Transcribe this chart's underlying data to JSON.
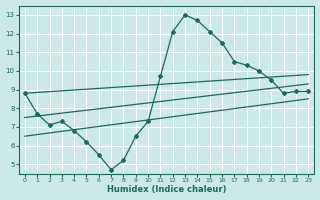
{
  "xlabel": "Humidex (Indice chaleur)",
  "bg_color": "#cce8e8",
  "grid_color": "#b8d8d8",
  "line_color": "#1a6b5a",
  "xlim": [
    -0.5,
    23.5
  ],
  "ylim": [
    4.5,
    13.5
  ],
  "yticks": [
    5,
    6,
    7,
    8,
    9,
    10,
    11,
    12,
    13
  ],
  "xticks": [
    0,
    1,
    2,
    3,
    4,
    5,
    6,
    7,
    8,
    9,
    10,
    11,
    12,
    13,
    14,
    15,
    16,
    17,
    18,
    19,
    20,
    21,
    22,
    23
  ],
  "line1_x": [
    0,
    1,
    2,
    3,
    4,
    5,
    6,
    7,
    8,
    9,
    10,
    11,
    12,
    13,
    14,
    15,
    16,
    17,
    18,
    19,
    20,
    21,
    22,
    23
  ],
  "line1_y": [
    8.8,
    7.7,
    7.1,
    7.3,
    6.8,
    6.2,
    5.5,
    4.7,
    5.2,
    6.5,
    7.3,
    9.7,
    12.1,
    13.0,
    12.7,
    12.1,
    11.5,
    10.5,
    10.3,
    10.0,
    9.5,
    8.8,
    8.9,
    8.9
  ],
  "line2_x": [
    0,
    23
  ],
  "line2_y": [
    8.8,
    9.8
  ],
  "line3_x": [
    0,
    23
  ],
  "line3_y": [
    7.5,
    9.3
  ],
  "line4_x": [
    0,
    23
  ],
  "line4_y": [
    6.5,
    8.5
  ]
}
